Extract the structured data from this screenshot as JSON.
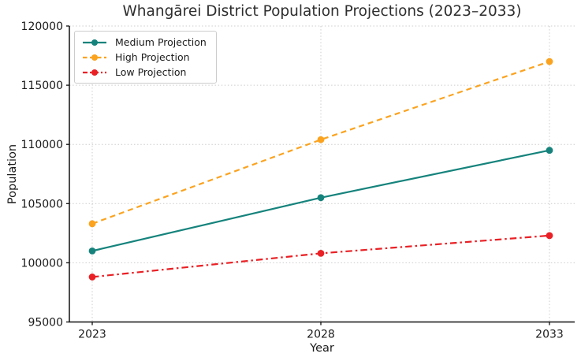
{
  "chart_data": {
    "type": "line",
    "title": "Whangārei District Population Projections (2023–2033)",
    "xlabel": "Year",
    "ylabel": "Population",
    "x": [
      2023,
      2028,
      2033
    ],
    "xtick_labels": [
      "2023",
      "2028",
      "2033"
    ],
    "ytick_labels": [
      "95000",
      "100000",
      "105000",
      "110000",
      "115000",
      "120000"
    ],
    "ylim": [
      95000,
      120000
    ],
    "ytick_step": 5000,
    "grid": "dotted",
    "grid_color": "#cccccc",
    "axis_color": "#111111",
    "legend_position": "upper-left",
    "series": [
      {
        "name": "Medium Projection",
        "values": [
          101000,
          105500,
          109500
        ],
        "color": "#15837C",
        "line_style": "solid",
        "marker": "circle"
      },
      {
        "name": "High Projection",
        "values": [
          103300,
          110400,
          117000
        ],
        "color": "#FBA31F",
        "line_style": "dashed",
        "marker": "circle"
      },
      {
        "name": "Low Projection",
        "values": [
          98800,
          100800,
          102300
        ],
        "color": "#E92025",
        "line_style": "dashdot",
        "marker": "circle"
      }
    ]
  }
}
